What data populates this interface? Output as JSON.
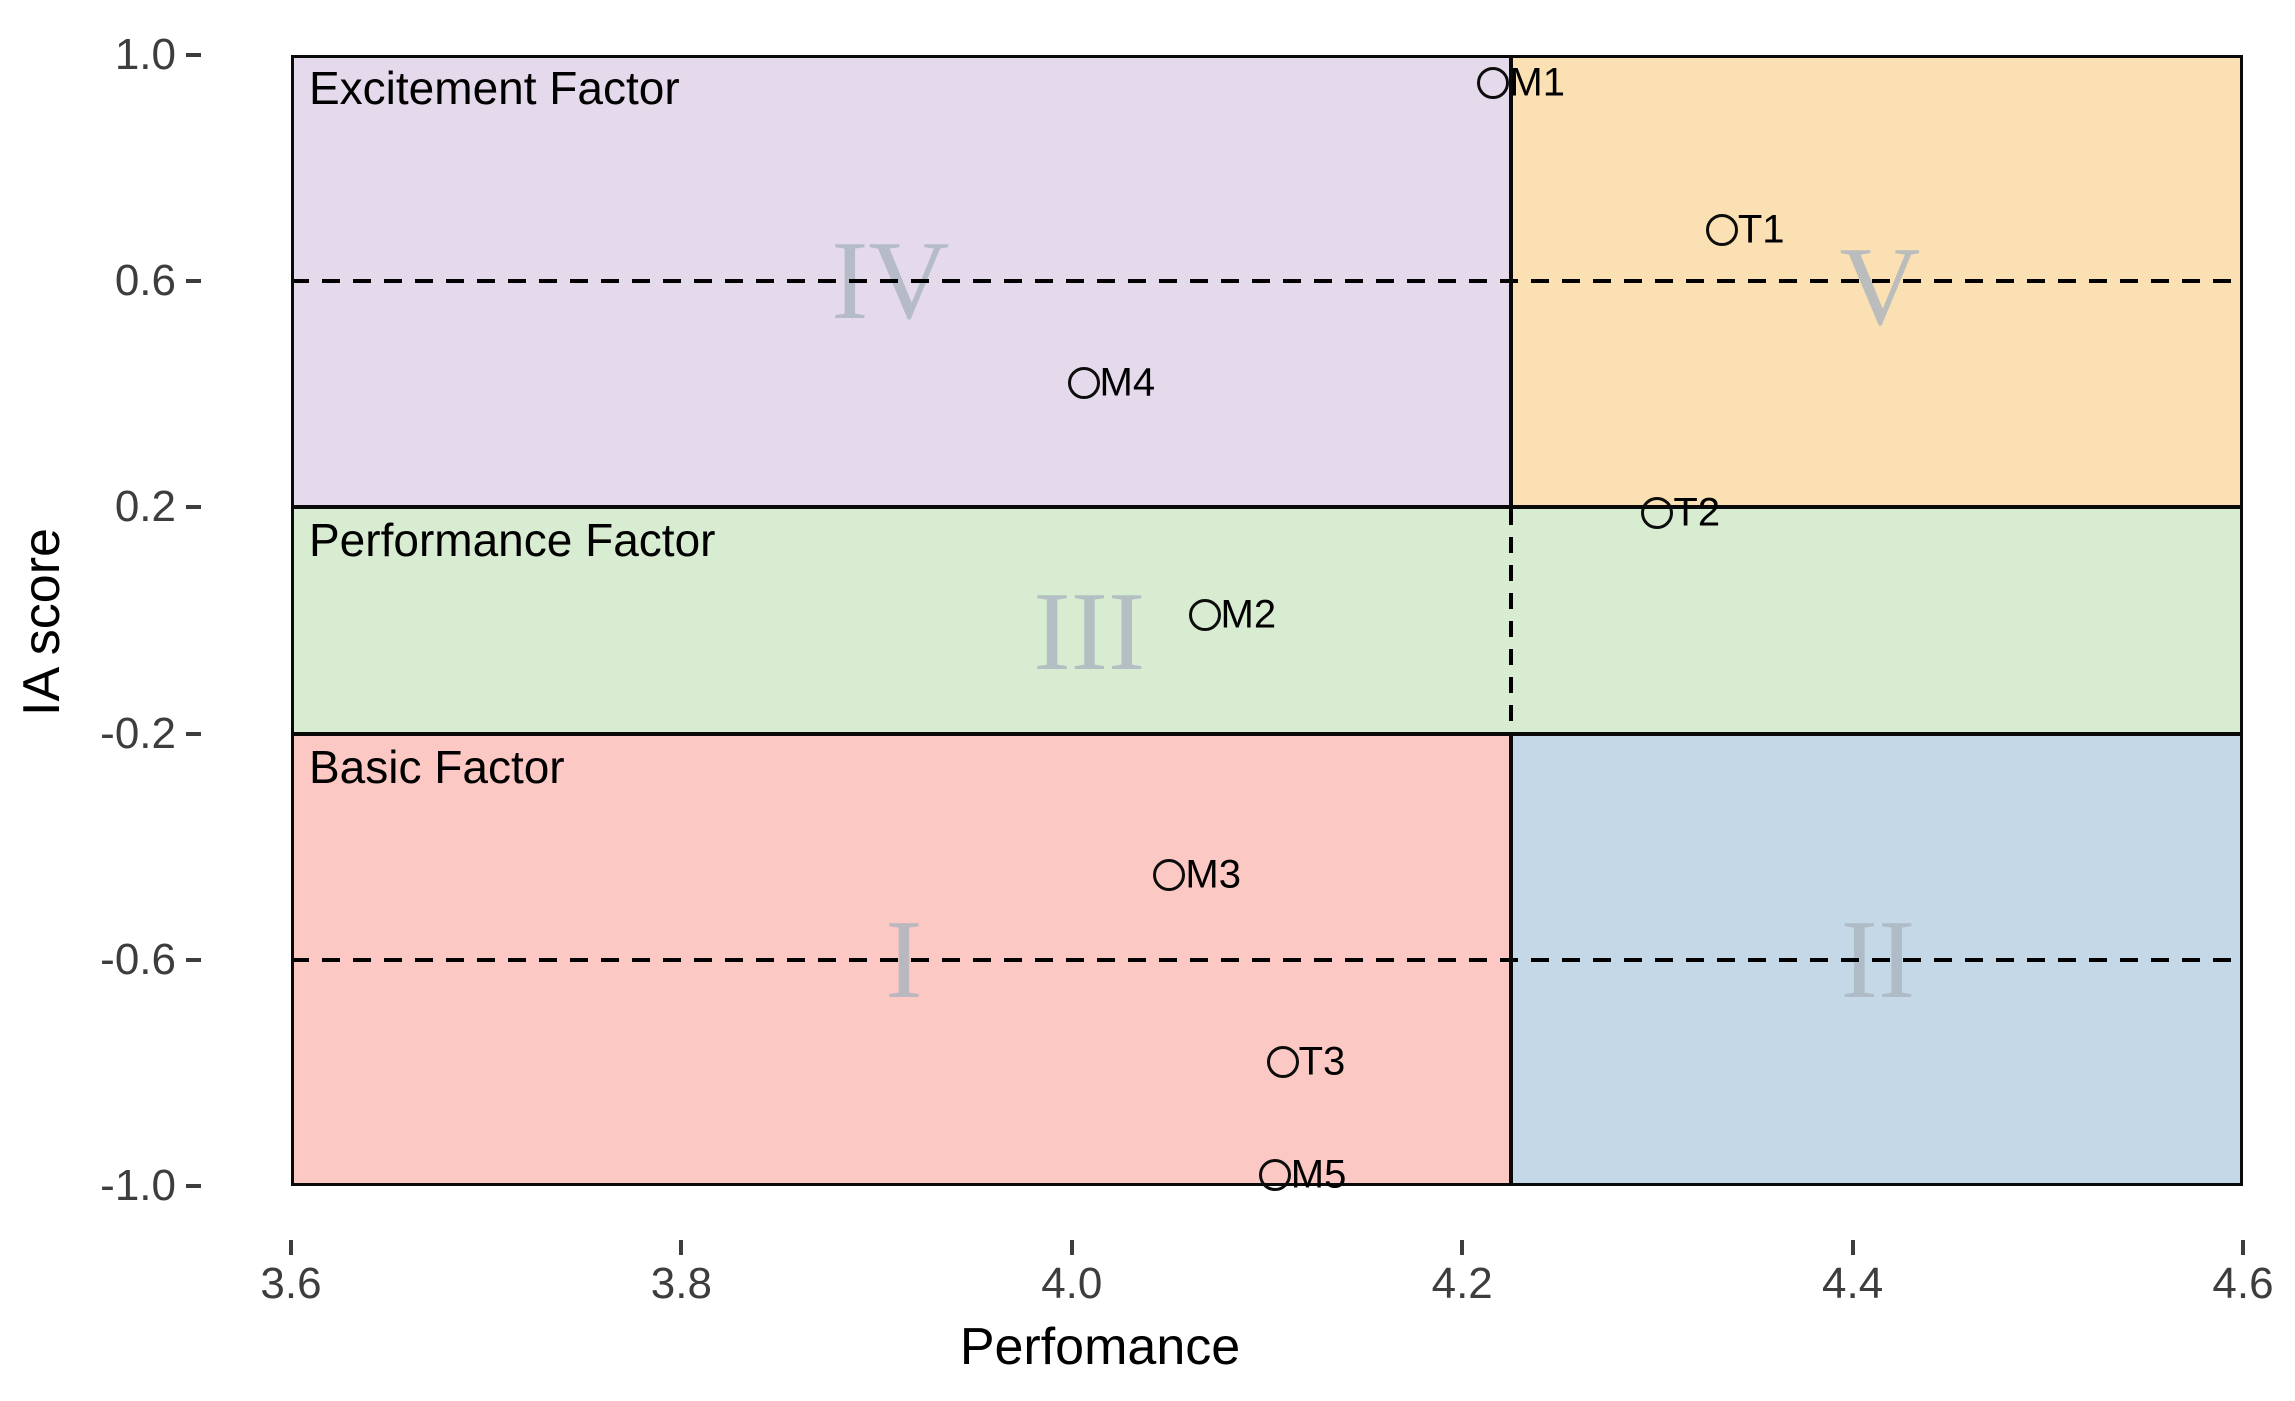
{
  "figure": {
    "background": "#ffffff",
    "line_color": "#000000"
  },
  "chart_data": {
    "type": "scatter",
    "title": "",
    "xlabel": "Perfomance",
    "ylabel": "IA score",
    "xlim": [
      3.6,
      4.6
    ],
    "ylim": [
      -1.0,
      1.0
    ],
    "grid": false,
    "legend": "none",
    "x_ticks": [
      {
        "v": 3.6,
        "label": "3.6"
      },
      {
        "v": 3.8,
        "label": "3.8"
      },
      {
        "v": 4.0,
        "label": "4.0"
      },
      {
        "v": 4.2,
        "label": "4.2"
      },
      {
        "v": 4.4,
        "label": "4.4"
      },
      {
        "v": 4.6,
        "label": "4.6"
      }
    ],
    "y_ticks": [
      {
        "v": 1.0,
        "label": "1.0"
      },
      {
        "v": 0.6,
        "label": "0.6"
      },
      {
        "v": 0.2,
        "label": "0.2"
      },
      {
        "v": -0.2,
        "label": "-0.2"
      },
      {
        "v": -0.6,
        "label": "-0.6"
      },
      {
        "v": -1.0,
        "label": "-1.0"
      }
    ],
    "x_split": 4.225,
    "y_splits": [
      0.2,
      -0.2
    ],
    "dashed_h_lines": [
      0.6,
      -0.6
    ],
    "regions": [
      {
        "id": "IV",
        "label": "Excitement Factor",
        "x0": 3.6,
        "x1": 4.225,
        "y0": 0.2,
        "y1": 1.0,
        "color": "#e4daeb"
      },
      {
        "id": "V",
        "label": "",
        "x0": 4.225,
        "x1": 4.6,
        "y0": 0.2,
        "y1": 1.0,
        "color": "#fbe0b4"
      },
      {
        "id": "III",
        "label": "Performance Factor",
        "x0": 3.6,
        "x1": 4.6,
        "y0": -0.2,
        "y1": 0.2,
        "color": "#d8ecd2"
      },
      {
        "id": "I",
        "label": "Basic Factor",
        "x0": 3.6,
        "x1": 4.225,
        "y0": -1.0,
        "y1": -0.2,
        "color": "#fbc8c3"
      },
      {
        "id": "II",
        "label": "",
        "x0": 4.225,
        "x1": 4.6,
        "y0": -1.0,
        "y1": -0.2,
        "color": "#c5d8e7"
      }
    ],
    "quadrant_numerals": [
      {
        "text": "I",
        "x": 3.914,
        "y": -0.6
      },
      {
        "text": "II",
        "x": 4.413,
        "y": -0.6
      },
      {
        "text": "III",
        "x": 4.009,
        "y": -0.02
      },
      {
        "text": "IV",
        "x": 3.907,
        "y": 0.6
      },
      {
        "text": "V",
        "x": 4.414,
        "y": 0.59
      }
    ],
    "points": [
      {
        "label": "M1",
        "x": 4.216,
        "y": 0.95
      },
      {
        "label": "T1",
        "x": 4.333,
        "y": 0.69
      },
      {
        "label": "T2",
        "x": 4.3,
        "y": 0.19
      },
      {
        "label": "M4",
        "x": 4.006,
        "y": 0.42
      },
      {
        "label": "M2",
        "x": 4.068,
        "y": 0.01
      },
      {
        "label": "M3",
        "x": 4.05,
        "y": -0.45
      },
      {
        "label": "T3",
        "x": 4.108,
        "y": -0.78
      },
      {
        "label": "M5",
        "x": 4.104,
        "y": -0.98
      }
    ]
  }
}
